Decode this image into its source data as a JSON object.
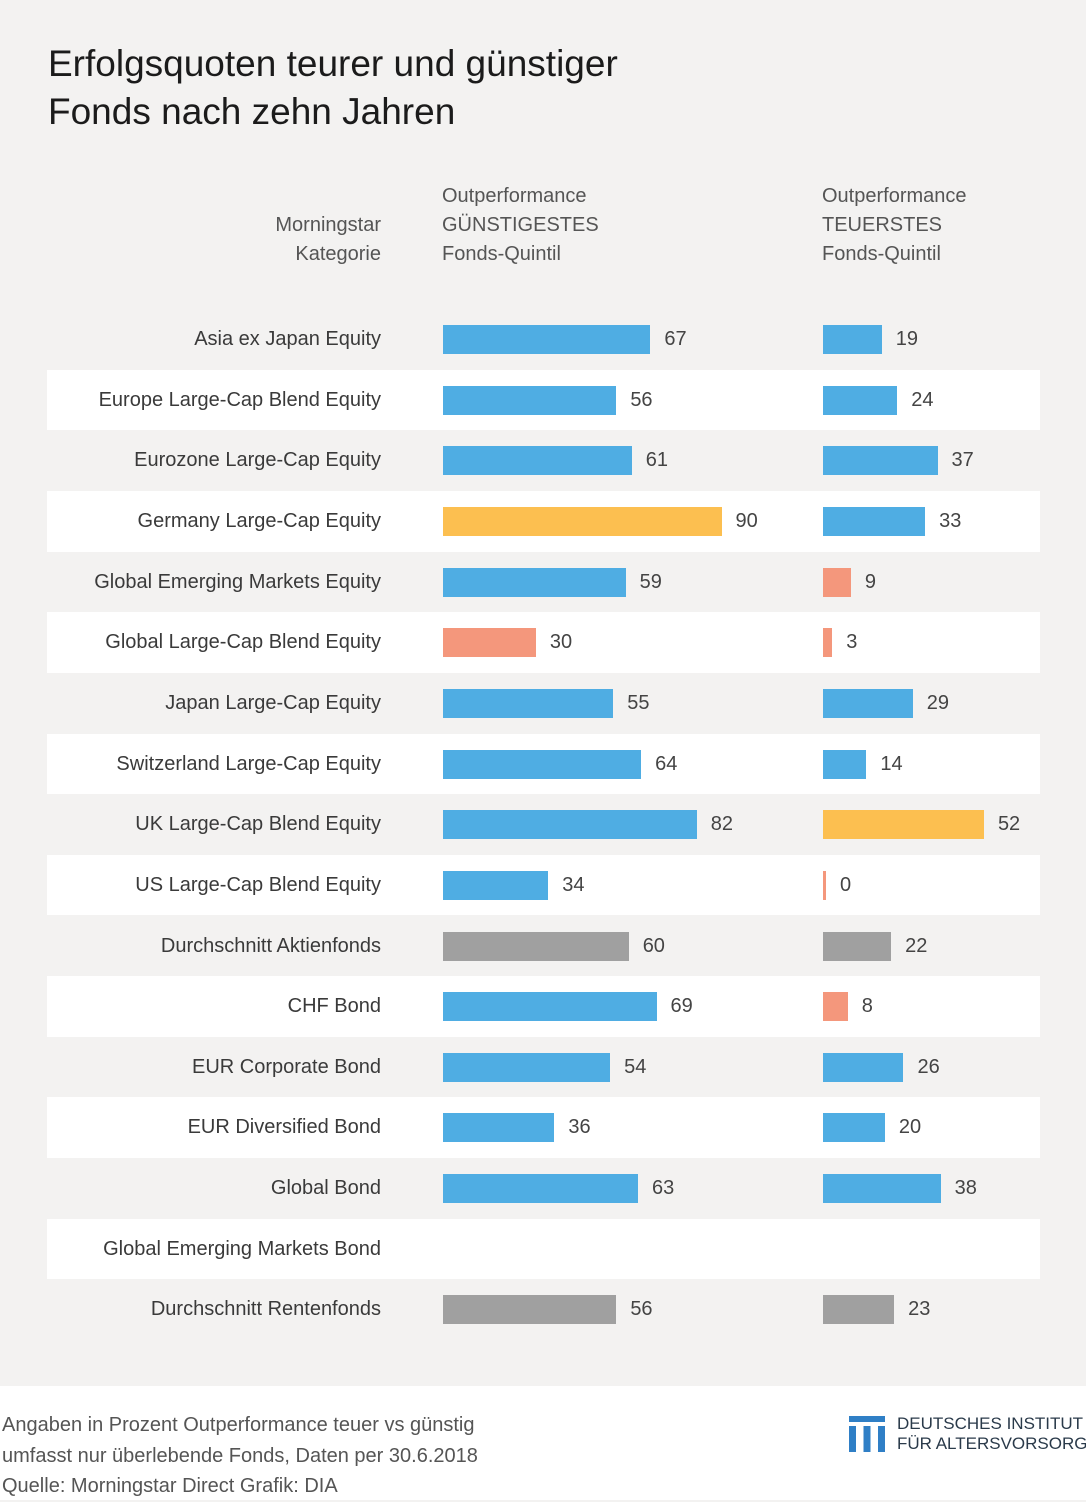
{
  "title": {
    "line1": "Erfolgsquoten teurer und günstiger",
    "line2": "Fonds nach zehn Jahren"
  },
  "headers": {
    "category": [
      "Morningstar",
      "Kategorie"
    ],
    "cheap": [
      "Outperformance",
      "GÜNSTIGESTES",
      "Fonds-Quintil"
    ],
    "expensive": [
      "Outperformance",
      "TEUERSTES",
      "Fonds-Quintil"
    ]
  },
  "colors": {
    "blue": "#4fade3",
    "highlight": "#fcbf50",
    "low": "#f4977c",
    "average": "#a0a0a0",
    "row_alt": "#f3f2f1",
    "row_plain": "#ffffff"
  },
  "chart_data": {
    "type": "bar",
    "categories": [
      "Asia ex Japan Equity",
      "Europe Large-Cap Blend Equity",
      "Eurozone Large-Cap Equity",
      "Germany Large-Cap Equity",
      "Global Emerging Markets Equity",
      "Global Large-Cap Blend Equity",
      "Japan Large-Cap Equity",
      "Switzerland Large-Cap Equity",
      "UK Large-Cap Blend Equity",
      "US Large-Cap Blend Equity",
      "Durchschnitt Aktienfonds",
      "CHF Bond",
      "EUR Corporate Bond",
      "EUR Diversified Bond",
      "Global Bond",
      "Global Emerging Markets Bond",
      "Durchschnitt Rentenfonds"
    ],
    "series": [
      {
        "values": [
          67,
          56,
          61,
          90,
          59,
          30,
          55,
          64,
          82,
          34,
          60,
          69,
          54,
          36,
          63,
          null,
          56
        ],
        "colors": [
          "blue",
          "blue",
          "blue",
          "highlight",
          "blue",
          "low",
          "blue",
          "blue",
          "blue",
          "blue",
          "average",
          "blue",
          "blue",
          "blue",
          "blue",
          null,
          "average"
        ]
      },
      {
        "values": [
          19,
          24,
          37,
          33,
          9,
          3,
          29,
          14,
          52,
          0,
          22,
          8,
          26,
          20,
          38,
          null,
          23
        ],
        "colors": [
          "blue",
          "blue",
          "blue",
          "blue",
          "low",
          "low",
          "blue",
          "blue",
          "highlight",
          "low",
          "average",
          "low",
          "blue",
          "blue",
          "blue",
          null,
          "average"
        ]
      }
    ],
    "unit": "Prozent",
    "xlim": [
      0,
      100
    ]
  },
  "footer": {
    "line1": "Angaben in Prozent  Outperformance teuer vs günstig",
    "line2": "umfasst nur überlebende Fonds, Daten per 30.6.2018",
    "line3": "Quelle: Morningstar Direct  Grafik: DIA"
  },
  "logo": {
    "line1": "DEUTSCHES INSTITUT",
    "line2": "FÜR ALTERSVORSORGE",
    "icon": "dia-logo-icon"
  }
}
